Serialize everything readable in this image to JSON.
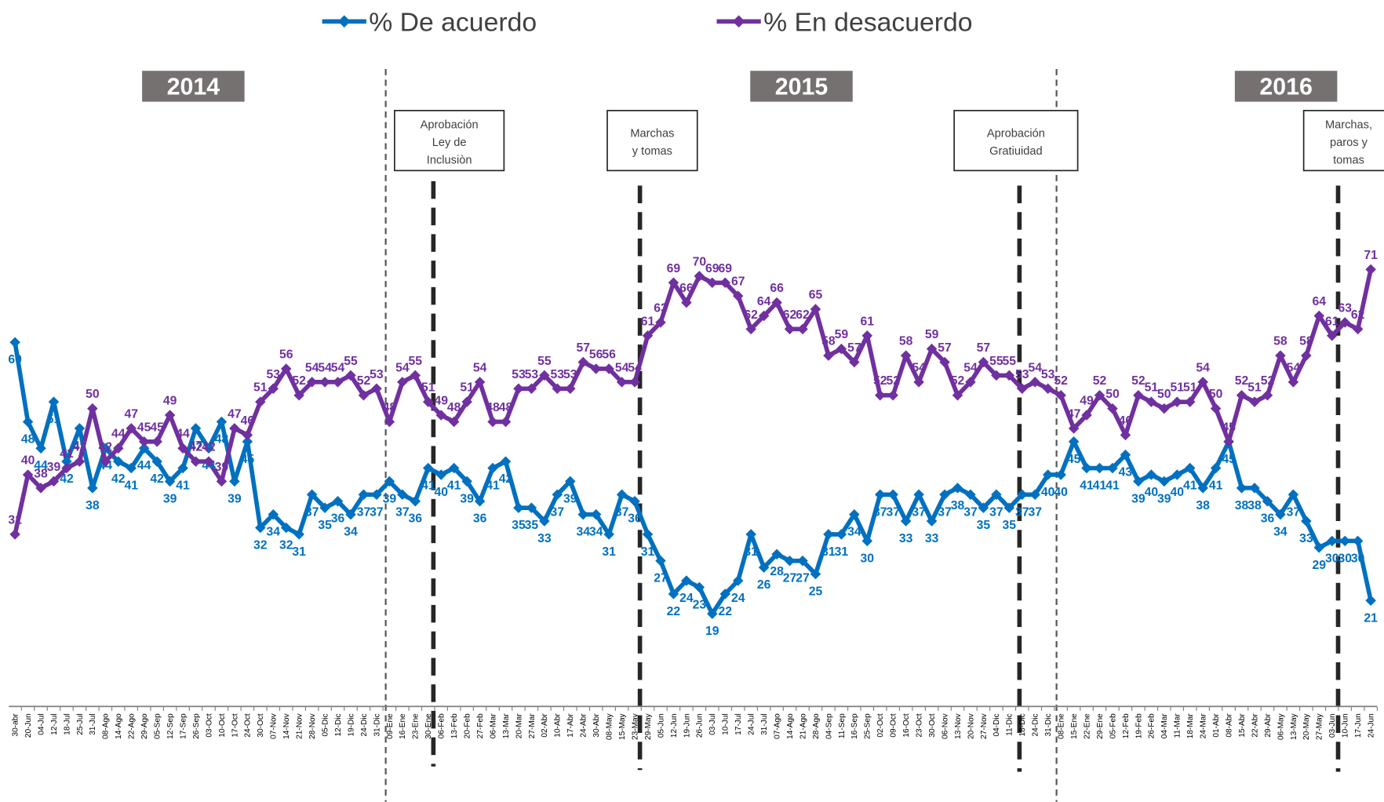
{
  "chart_data": {
    "type": "line",
    "categories": [
      "30-abr",
      "20-Jun",
      "04-Jul",
      "12-Jul",
      "18-Jul",
      "25-Jul",
      "31-Jul",
      "08-Ago",
      "14-Ago",
      "22-Ago",
      "29-Ago",
      "05-Sep",
      "12-Sep",
      "17-Sep",
      "26-Sep",
      "03-Oct",
      "10-Oct",
      "17-Oct",
      "24-Oct",
      "30-Oct",
      "07-Nov",
      "14-Nov",
      "21-Nov",
      "28-Nov",
      "05-Dic",
      "12-Dic",
      "19-Dic",
      "24-Dic",
      "31-Dic",
      "09-Ene",
      "16-Ene",
      "23-Ene",
      "30-Ene",
      "06-Feb",
      "13-Feb",
      "20-Feb",
      "27-Feb",
      "06-Mar",
      "13-Mar",
      "20-Mar",
      "27-Mar",
      "02-Abr",
      "10-Abr",
      "17-Abr",
      "24-Abr",
      "30-Abr",
      "08-May",
      "15-May",
      "23-May",
      "29-May",
      "05-Jun",
      "12-Jun",
      "19-Jun",
      "26-Jun",
      "03-Jul",
      "10-Jul",
      "17-Jul",
      "24-Jul",
      "31-Jul",
      "07-Ago",
      "14-Ago",
      "21-Ago",
      "28-Ago",
      "04-Sep",
      "11-Sep",
      "16-Sep",
      "25-Sep",
      "02-Oct",
      "09-Oct",
      "16-Oct",
      "23-Oct",
      "30-Oct",
      "06-Nov",
      "13-Nov",
      "20-Nov",
      "27-Nov",
      "04-Dic",
      "11-Dic",
      "18-Dic",
      "24-Dic",
      "31-Dic",
      "08-Ene",
      "15-Ene",
      "22-Ene",
      "29-Ene",
      "05-Feb",
      "12-Feb",
      "19-Feb",
      "26-Feb",
      "04-Mar",
      "11-Mar",
      "18-Mar",
      "24-Mar",
      "01-Abr",
      "08-Abr",
      "15-Abr",
      "22-Abr",
      "29-Abr",
      "06-May",
      "13-May",
      "20-May",
      "27-May",
      "03-Jun",
      "10-Jun",
      "17-Jun",
      "24-Jun"
    ],
    "series": [
      {
        "name": "% De acuerdo",
        "color": "#0070c0",
        "values": [
          60,
          48,
          44,
          51,
          42,
          47,
          38,
          44,
          42,
          41,
          44,
          42,
          39,
          41,
          47,
          44,
          48,
          39,
          45,
          32,
          34,
          32,
          31,
          37,
          35,
          36,
          34,
          37,
          37,
          39,
          37,
          36,
          41,
          40,
          41,
          39,
          36,
          41,
          42,
          35,
          35,
          33,
          37,
          39,
          34,
          34,
          31,
          37,
          36,
          31,
          27,
          22,
          24,
          23,
          19,
          22,
          24,
          31,
          26,
          28,
          27,
          27,
          25,
          31,
          31,
          34,
          30,
          37,
          37,
          33,
          37,
          33,
          37,
          38,
          37,
          35,
          37,
          35,
          37,
          37,
          40,
          40,
          45,
          41,
          41,
          41,
          43,
          39,
          40,
          39,
          40,
          41,
          38,
          41,
          45,
          38,
          38,
          36,
          34,
          37,
          33,
          29,
          30,
          30,
          30,
          21
        ]
      },
      {
        "name": "% En desacuerdo",
        "color": "#7030a0",
        "values": [
          31,
          40,
          38,
          39,
          41,
          42,
          50,
          42,
          44,
          47,
          45,
          45,
          49,
          44,
          42,
          42,
          39,
          47,
          46,
          51,
          53,
          56,
          52,
          54,
          54,
          54,
          55,
          52,
          53,
          48,
          54,
          55,
          51,
          49,
          48,
          51,
          54,
          48,
          48,
          53,
          53,
          55,
          53,
          53,
          57,
          56,
          56,
          54,
          54,
          61,
          63,
          69,
          66,
          70,
          69,
          69,
          67,
          62,
          64,
          66,
          62,
          62,
          65,
          58,
          59,
          57,
          61,
          52,
          52,
          58,
          54,
          59,
          57,
          52,
          54,
          57,
          55,
          55,
          53,
          54,
          53,
          52,
          47,
          49,
          52,
          50,
          46,
          52,
          51,
          50,
          51,
          51,
          54,
          50,
          45,
          52,
          51,
          52,
          58,
          54,
          58,
          64,
          61,
          63,
          62,
          71
        ]
      }
    ],
    "ylim": [
      5,
      85
    ],
    "period_labels": [
      "2014",
      "2015",
      "2016"
    ],
    "annotations": [
      {
        "lines": [
          "Aprobación",
          "Ley de",
          "Inclusiòn"
        ]
      },
      {
        "lines": [
          "Marchas",
          "y tomas"
        ]
      },
      {
        "lines": [
          "Aprobación",
          "Gratiuidad"
        ]
      },
      {
        "lines": [
          "Marchas,",
          "paros y",
          "tomas"
        ]
      }
    ]
  }
}
